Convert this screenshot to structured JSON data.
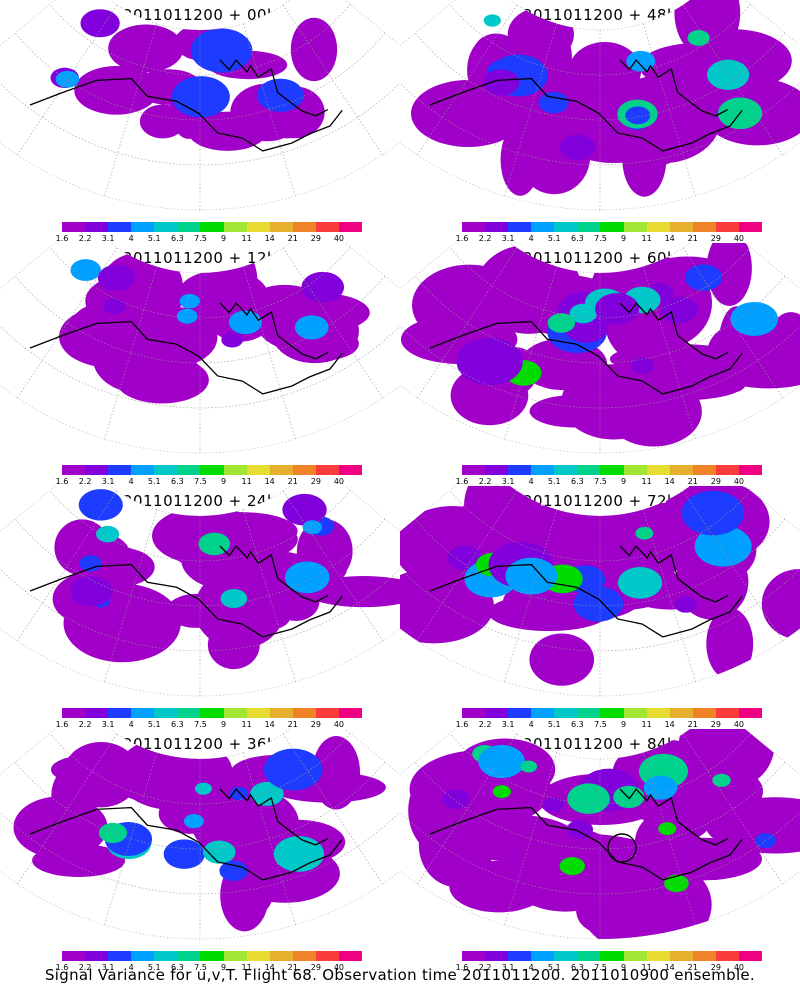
{
  "caption": "Signal Variance for u,v,T. Flight 68. Observation time 2011011200. 2011010900 ensemble.",
  "colorbar": {
    "colors": [
      "#a000c8",
      "#8200dc",
      "#1e3cff",
      "#00a0ff",
      "#00c8c8",
      "#00d28c",
      "#00dc00",
      "#a0e632",
      "#e6dc32",
      "#e6af2d",
      "#f08228",
      "#fa3c3c",
      "#f00082"
    ],
    "labels": [
      "1.6",
      "2.2",
      "3.1",
      "4",
      "5.1",
      "6.3",
      "7.5",
      "9",
      "11",
      "14",
      "21",
      "29",
      "40"
    ]
  },
  "panels": [
    {
      "title": "2011011200 + 00h",
      "col": 0,
      "row": 0,
      "coverage": 0.35,
      "intensity": 0.15,
      "seed": 3,
      "circle": false
    },
    {
      "title": "2011011200 + 48h",
      "col": 1,
      "row": 0,
      "coverage": 0.8,
      "intensity": 0.45,
      "seed": 11,
      "circle": false
    },
    {
      "title": "2011011200 + 12h",
      "col": 0,
      "row": 1,
      "coverage": 0.5,
      "intensity": 0.25,
      "seed": 5,
      "circle": false
    },
    {
      "title": "2011011200 + 60h",
      "col": 1,
      "row": 1,
      "coverage": 0.85,
      "intensity": 0.55,
      "seed": 13,
      "circle": false
    },
    {
      "title": "2011011200 + 24h",
      "col": 0,
      "row": 2,
      "coverage": 0.65,
      "intensity": 0.35,
      "seed": 7,
      "circle": false
    },
    {
      "title": "2011011200 + 72h",
      "col": 1,
      "row": 2,
      "coverage": 0.9,
      "intensity": 0.6,
      "seed": 17,
      "circle": false
    },
    {
      "title": "2011011200 + 36h",
      "col": 0,
      "row": 3,
      "coverage": 0.7,
      "intensity": 0.4,
      "seed": 9,
      "circle": false
    },
    {
      "title": "2011011200 + 84h",
      "col": 1,
      "row": 3,
      "coverage": 0.95,
      "intensity": 0.65,
      "seed": 19,
      "circle": true
    }
  ]
}
